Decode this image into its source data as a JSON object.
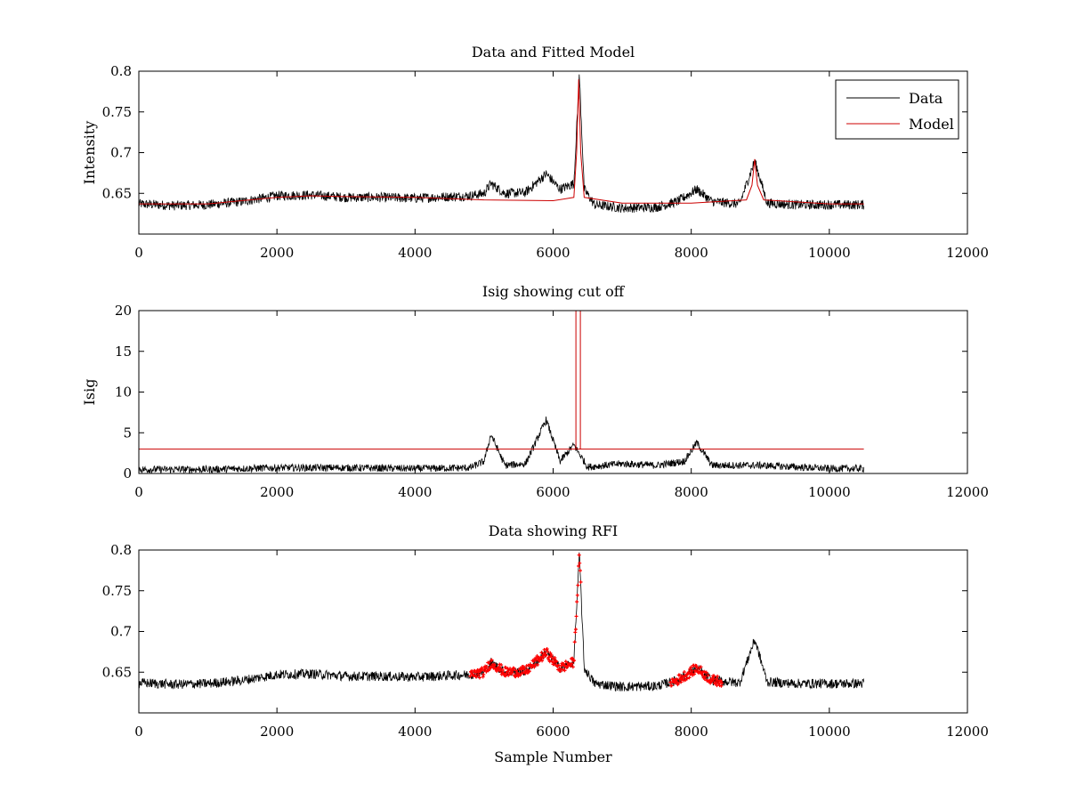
{
  "colors": {
    "data": "#000000",
    "model": "#cc0000",
    "rfi": "#ff0000",
    "axes": "#000000"
  },
  "chart_data": [
    {
      "type": "line",
      "title": "Data and Fitted Model",
      "xlabel": "",
      "ylabel": "Intensity",
      "xlim": [
        0,
        12000
      ],
      "ylim": [
        0.6,
        0.8
      ],
      "xticks": [
        0,
        2000,
        4000,
        6000,
        8000,
        10000,
        12000
      ],
      "xtick_labels": [
        "0",
        "2000",
        "4000",
        "6000",
        "8000",
        "10000",
        "12000"
      ],
      "yticks": [
        0.65,
        0.7,
        0.75,
        0.8
      ],
      "ytick_labels": [
        "0.65",
        "0.7",
        "0.75",
        "0.8"
      ],
      "legend": {
        "placement": "top-right",
        "entries": [
          "Data",
          "Model"
        ]
      },
      "series": [
        {
          "name": "Data",
          "x": [
            0,
            500,
            1000,
            1500,
            2000,
            2500,
            3000,
            3500,
            4000,
            4500,
            4800,
            5000,
            5100,
            5300,
            5600,
            5900,
            6100,
            6300,
            6380,
            6450,
            6600,
            7000,
            7500,
            7800,
            8080,
            8300,
            8700,
            8920,
            9100,
            9500,
            10000,
            10500
          ],
          "y": [
            0.637,
            0.635,
            0.636,
            0.64,
            0.647,
            0.648,
            0.645,
            0.645,
            0.644,
            0.646,
            0.647,
            0.65,
            0.662,
            0.65,
            0.651,
            0.674,
            0.655,
            0.662,
            0.795,
            0.655,
            0.636,
            0.632,
            0.633,
            0.64,
            0.655,
            0.64,
            0.637,
            0.69,
            0.638,
            0.636,
            0.636,
            0.636
          ],
          "noise_amplitude": 0.012
        },
        {
          "name": "Model",
          "x": [
            0,
            1000,
            2000,
            2500,
            3000,
            4000,
            5000,
            6000,
            6300,
            6340,
            6370,
            6400,
            6450,
            7000,
            8000,
            8800,
            8880,
            8920,
            8960,
            9050,
            10000,
            10500
          ],
          "y": [
            0.637,
            0.637,
            0.645,
            0.647,
            0.646,
            0.645,
            0.642,
            0.641,
            0.645,
            0.7,
            0.79,
            0.7,
            0.645,
            0.638,
            0.638,
            0.642,
            0.66,
            0.692,
            0.66,
            0.642,
            0.637,
            0.637
          ]
        }
      ]
    },
    {
      "type": "line",
      "title": "Isig showing cut off",
      "xlabel": "",
      "ylabel": "Isig",
      "xlim": [
        0,
        12000
      ],
      "ylim": [
        0,
        20
      ],
      "xticks": [
        0,
        2000,
        4000,
        6000,
        8000,
        10000,
        12000
      ],
      "xtick_labels": [
        "0",
        "2000",
        "4000",
        "6000",
        "8000",
        "10000",
        "12000"
      ],
      "yticks": [
        0,
        5,
        10,
        15,
        20
      ],
      "ytick_labels": [
        "0",
        "5",
        "10",
        "15",
        "20"
      ],
      "series": [
        {
          "name": "Isig",
          "x": [
            0,
            1000,
            2000,
            3000,
            4000,
            4800,
            5000,
            5100,
            5300,
            5600,
            5900,
            6100,
            6300,
            6500,
            7000,
            7500,
            7900,
            8080,
            8300,
            9000,
            10000,
            10500
          ],
          "y": [
            0.5,
            0.5,
            0.7,
            0.7,
            0.6,
            0.7,
            1.5,
            4.8,
            1.0,
            1.2,
            6.6,
            1.5,
            3.5,
            0.8,
            1.2,
            1.0,
            1.5,
            3.8,
            1.0,
            1.0,
            0.6,
            0.6
          ],
          "noise_amplitude": 0.9
        },
        {
          "name": "Cut off",
          "x": [
            0,
            6330,
            6330,
            6330,
            6395,
            6395,
            6395,
            10500
          ],
          "y": [
            3.0,
            3.0,
            20,
            3.0,
            3.0,
            20,
            3.0,
            3.0
          ]
        }
      ]
    },
    {
      "type": "line",
      "title": "Data showing RFI",
      "xlabel": "Sample Number",
      "ylabel": "",
      "xlim": [
        0,
        12000
      ],
      "ylim": [
        0.6,
        0.8
      ],
      "xticks": [
        0,
        2000,
        4000,
        6000,
        8000,
        10000,
        12000
      ],
      "xtick_labels": [
        "0",
        "2000",
        "4000",
        "6000",
        "8000",
        "10000",
        "12000"
      ],
      "yticks": [
        0.65,
        0.7,
        0.75,
        0.8
      ],
      "ytick_labels": [
        "0.65",
        "0.7",
        "0.75",
        "0.8"
      ],
      "series": [
        {
          "name": "Data",
          "x": [
            0,
            500,
            1000,
            1500,
            2000,
            2500,
            3000,
            3500,
            4000,
            4500,
            4800,
            5000,
            5100,
            5300,
            5600,
            5900,
            6100,
            6300,
            6380,
            6450,
            6600,
            7000,
            7500,
            7800,
            8080,
            8300,
            8700,
            8920,
            9100,
            9500,
            10000,
            10500
          ],
          "y": [
            0.637,
            0.635,
            0.636,
            0.64,
            0.647,
            0.648,
            0.645,
            0.645,
            0.644,
            0.646,
            0.647,
            0.65,
            0.662,
            0.65,
            0.651,
            0.674,
            0.655,
            0.662,
            0.795,
            0.655,
            0.636,
            0.632,
            0.633,
            0.64,
            0.655,
            0.64,
            0.637,
            0.69,
            0.638,
            0.636,
            0.636,
            0.636
          ],
          "noise_amplitude": 0.012
        },
        {
          "name": "RFI",
          "marker": "+",
          "segments": [
            [
              4800,
              6400
            ],
            [
              7700,
              8450
            ]
          ]
        }
      ]
    }
  ]
}
